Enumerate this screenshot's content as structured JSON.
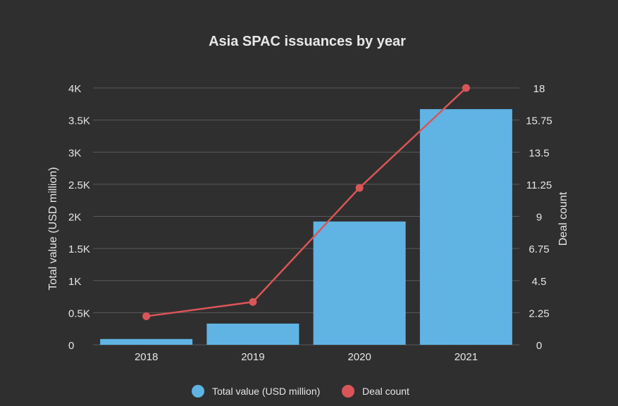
{
  "chart_data": {
    "type": "bar",
    "title": "Asia SPAC issuances by year",
    "categories": [
      "2018",
      "2019",
      "2020",
      "2021"
    ],
    "series": [
      {
        "name": "Total value (USD million)",
        "type": "bar",
        "axis": "left",
        "color": "#5fb4e4",
        "values": [
          90,
          330,
          1920,
          3670
        ]
      },
      {
        "name": "Deal count",
        "type": "line",
        "axis": "right",
        "color": "#d95557",
        "values": [
          2,
          3,
          11,
          18
        ]
      }
    ],
    "y_left": {
      "label": "Total value (USD million)",
      "range": [
        0,
        4000
      ],
      "ticks": [
        "0",
        "0.5K",
        "1K",
        "1.5K",
        "2K",
        "2.5K",
        "3K",
        "3.5K",
        "4K"
      ]
    },
    "y_right": {
      "label": "Deal count",
      "range": [
        0,
        18
      ],
      "ticks": [
        "0",
        "2.25",
        "4.5",
        "6.75",
        "9",
        "11.25",
        "13.5",
        "15.75",
        "18"
      ]
    },
    "grid": true,
    "legend_position": "bottom-center"
  }
}
